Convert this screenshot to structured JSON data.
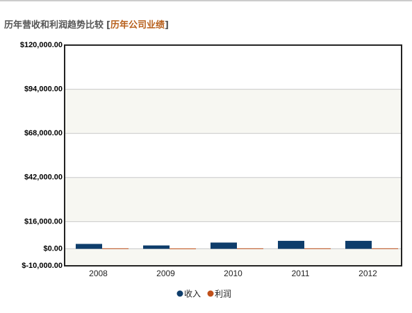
{
  "chart_data": {
    "type": "bar",
    "title": "历年营收和利润趋势比较",
    "title_brackets": [
      "[",
      "]"
    ],
    "title_link": "历年公司业绩",
    "categories": [
      "2008",
      "2009",
      "2010",
      "2011",
      "2012"
    ],
    "series": [
      {
        "name": "收入",
        "color": "#0e3d6b",
        "values": [
          2900,
          2000,
          3700,
          4700,
          4700
        ]
      },
      {
        "name": "利润",
        "color": "#c0501a",
        "values": [
          300,
          200,
          300,
          300,
          300
        ]
      }
    ],
    "ylim": [
      -10000,
      120000
    ],
    "yticks": [
      {
        "value": -10000,
        "label": "$-10,000.00"
      },
      {
        "value": 0,
        "label": "$0.00"
      },
      {
        "value": 16000,
        "label": "$16,000.00"
      },
      {
        "value": 42000,
        "label": "$42,000.00"
      },
      {
        "value": 68000,
        "label": "$68,000.00"
      },
      {
        "value": 94000,
        "label": "$94,000.00"
      },
      {
        "value": 120000,
        "label": "$120,000.00"
      }
    ],
    "grid": true,
    "band_color": "#f7f7f2",
    "legend": "bottom"
  }
}
